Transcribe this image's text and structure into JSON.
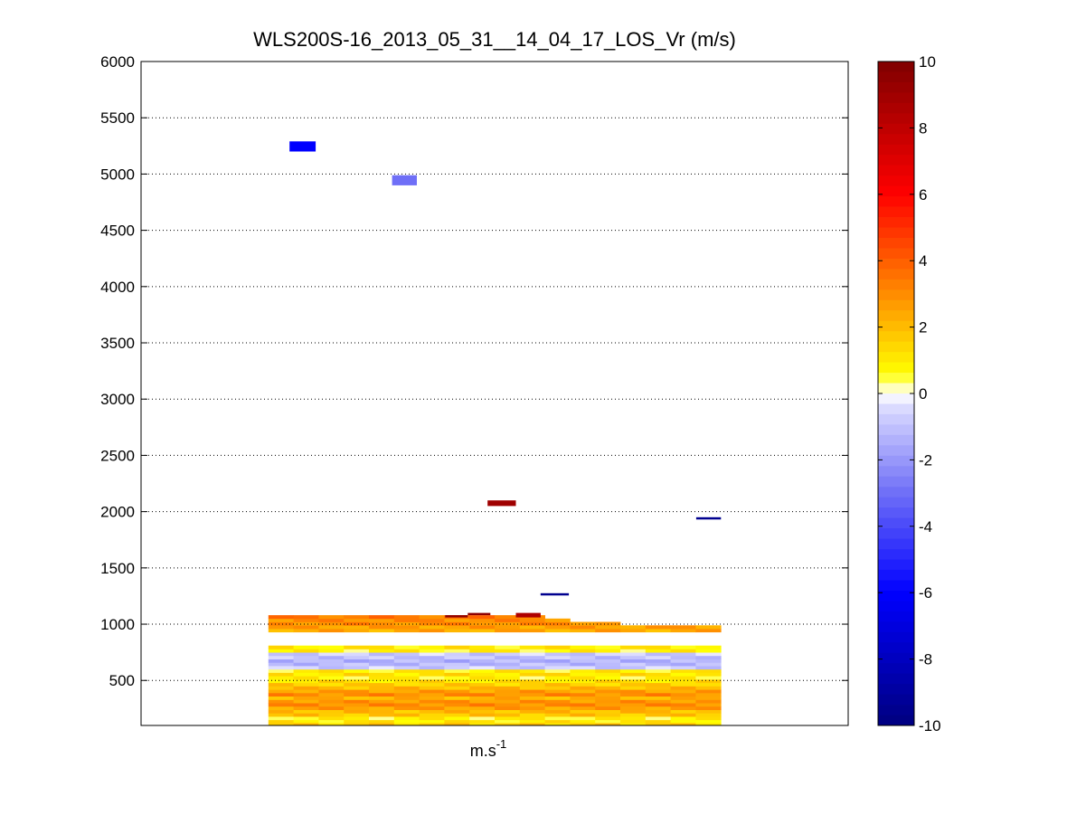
{
  "chart_data": {
    "type": "heatmap",
    "title": "WLS200S-16_2013_05_31__14_04_17_LOS_Vr (m/s)",
    "xlabel": "m.s",
    "xlabel_superscript": "-1",
    "ylabel": "",
    "ylim": [
      100,
      6000
    ],
    "yticks": [
      500,
      1000,
      1500,
      2000,
      2500,
      3000,
      3500,
      4000,
      4500,
      5000,
      5500,
      6000
    ],
    "grid": {
      "horizontal": "dotted",
      "vertical": "off"
    },
    "colorbar": {
      "range": [
        -10,
        10
      ],
      "ticks": [
        10,
        8,
        6,
        4,
        2,
        0,
        -2,
        -4,
        -6,
        -8,
        -10
      ],
      "steps": 64,
      "colormap": [
        [
          -10,
          "#00007f"
        ],
        [
          -6,
          "#0000ff"
        ],
        [
          -3,
          "#6f6ff7"
        ],
        [
          -0.5,
          "#d7d7ff"
        ],
        [
          0,
          "#ffffff"
        ],
        [
          0.6,
          "#ffff00"
        ],
        [
          3,
          "#ff8c00"
        ],
        [
          6,
          "#ff0000"
        ],
        [
          10,
          "#7f0000"
        ]
      ]
    },
    "x_extent": [
      0,
      1
    ],
    "data_extent": [
      0.18,
      0.82
    ],
    "columns": 18,
    "profile": [
      {
        "alt": 120,
        "v": 1.0
      },
      {
        "alt": 150,
        "v": 0.8
      },
      {
        "alt": 180,
        "v": 1.8
      },
      {
        "alt": 210,
        "v": 2.0
      },
      {
        "alt": 240,
        "v": 2.6
      },
      {
        "alt": 270,
        "v": 3.0
      },
      {
        "alt": 300,
        "v": 2.8
      },
      {
        "alt": 330,
        "v": 2.2
      },
      {
        "alt": 360,
        "v": 3.0
      },
      {
        "alt": 390,
        "v": 2.6
      },
      {
        "alt": 420,
        "v": 2.0
      },
      {
        "alt": 450,
        "v": 1.6
      },
      {
        "alt": 480,
        "v": 1.2
      },
      {
        "alt": 510,
        "v": 0.8
      },
      {
        "alt": 540,
        "v": 1.2
      },
      {
        "alt": 570,
        "v": 0.9
      },
      {
        "alt": 600,
        "v": -0.8
      },
      {
        "alt": 630,
        "v": -1.2
      },
      {
        "alt": 660,
        "v": -1.4
      },
      {
        "alt": 690,
        "v": -1.0
      },
      {
        "alt": 720,
        "v": -0.8
      },
      {
        "alt": 750,
        "v": 0.8
      },
      {
        "alt": 780,
        "v": 1.0
      },
      {
        "alt": 930,
        "v": 2.4
      },
      {
        "alt": 960,
        "v": 2.6
      },
      {
        "alt": 990,
        "v": 3.0
      },
      {
        "alt": 1020,
        "v": 3.0
      },
      {
        "alt": 1050,
        "v": 3.4
      }
    ],
    "layer_tops": [
      1080,
      1080,
      1080,
      1080,
      1080,
      1050,
      1050,
      1050,
      1050,
      1050,
      1050,
      1020,
      990,
      990,
      960,
      960,
      960,
      960
    ],
    "isolated_cells": [
      {
        "x": [
          0.21,
          0.247
        ],
        "alt": [
          5200,
          5290
        ],
        "v": -6.0
      },
      {
        "x": [
          0.355,
          0.39
        ],
        "alt": [
          4900,
          4990
        ],
        "v": -3.0
      },
      {
        "x": [
          0.49,
          0.53
        ],
        "alt": [
          2050,
          2100
        ],
        "v": 9.0
      },
      {
        "x": [
          0.565,
          0.605
        ],
        "alt": [
          1255,
          1275
        ],
        "v": -9.5
      },
      {
        "x": [
          0.785,
          0.82
        ],
        "alt": [
          1930,
          1950
        ],
        "v": -9.5
      },
      {
        "x": [
          0.43,
          0.462
        ],
        "alt": [
          1060,
          1080
        ],
        "v": 9.5
      },
      {
        "x": [
          0.462,
          0.494
        ],
        "alt": [
          1080,
          1100
        ],
        "v": 9.5
      },
      {
        "x": [
          0.53,
          0.565
        ],
        "alt": [
          1060,
          1100
        ],
        "v": 8.5
      }
    ]
  }
}
